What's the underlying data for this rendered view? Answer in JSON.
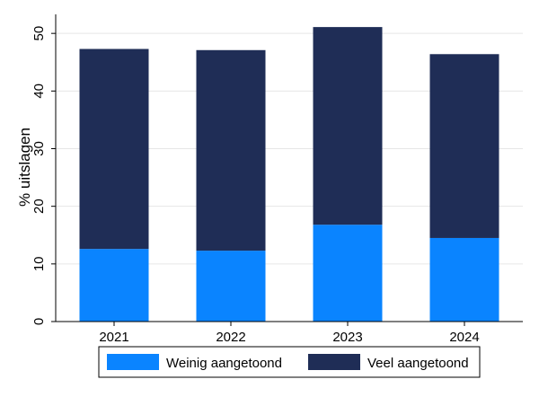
{
  "chart_data": {
    "type": "bar",
    "stacked": true,
    "categories": [
      "2021",
      "2022",
      "2023",
      "2024"
    ],
    "series": [
      {
        "name": "Weinig aangetoond",
        "color": "#0a84ff",
        "values": [
          12.6,
          12.3,
          16.8,
          14.5
        ]
      },
      {
        "name": "Veel aangetoond",
        "color": "#1f2d56",
        "values": [
          34.7,
          34.8,
          34.3,
          31.9
        ]
      }
    ],
    "ylabel": "% uitslagen",
    "xlabel": "",
    "ylim": [
      0,
      53.3
    ],
    "yticks": [
      0,
      10,
      20,
      30,
      40,
      50
    ],
    "grid": true,
    "legend_position": "bottom"
  }
}
